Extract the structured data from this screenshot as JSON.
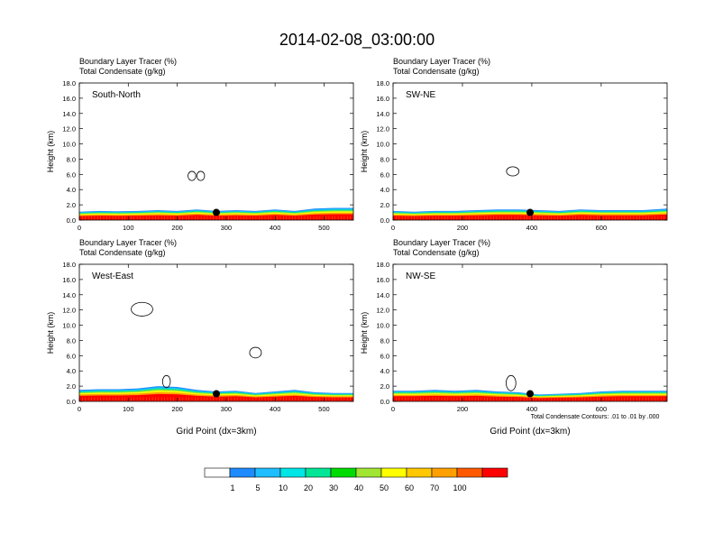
{
  "figure": {
    "title": "2014-02-08_03:00:00",
    "panel_label_line1": "Boundary Layer Tracer   (%)",
    "panel_label_line2": "Total Condensate   (g/kg)",
    "ylabel": "Height (km)",
    "xlabel": "Grid Point (dx=3km)",
    "contour_note": "Total Condensate Contours: .01 to .01 by .000"
  },
  "colorbar": {
    "labels": [
      "1",
      "5",
      "10",
      "20",
      "30",
      "40",
      "50",
      "60",
      "70",
      "100"
    ],
    "colors": [
      "#ffffff",
      "#1e8cff",
      "#1ebeff",
      "#00e6e6",
      "#00e696",
      "#00dc00",
      "#a0e632",
      "#ffff00",
      "#ffc800",
      "#ffa000",
      "#ff5a00",
      "#ff0000"
    ]
  },
  "chart_data": [
    {
      "type": "heatmap",
      "name": "South-North",
      "title": "South-North",
      "xlim": [
        0,
        560
      ],
      "ylim": [
        0,
        18
      ],
      "xticks": [
        0,
        100,
        200,
        300,
        400,
        500
      ],
      "yticks": [
        "0.0",
        "2.0",
        "4.0",
        "6.0",
        "8.0",
        "10.0",
        "12.0",
        "14.0",
        "16.0",
        "18.0"
      ],
      "pbl_top_x": [
        0,
        40,
        80,
        120,
        160,
        200,
        240,
        280,
        320,
        360,
        400,
        440,
        480,
        520,
        560
      ],
      "pbl_top_km": [
        1.1,
        1.2,
        1.15,
        1.2,
        1.3,
        1.2,
        1.4,
        1.2,
        1.3,
        1.2,
        1.4,
        1.2,
        1.5,
        1.6,
        1.6
      ],
      "marker": {
        "x": 280,
        "y": 1.0
      },
      "condensate_contours": [
        {
          "x": 230,
          "y": 5.8,
          "rx": 8,
          "ry": 0.6
        },
        {
          "x": 248,
          "y": 5.8,
          "rx": 8,
          "ry": 0.6
        }
      ]
    },
    {
      "type": "heatmap",
      "name": "SW-NE",
      "title": "SW-NE",
      "xlim": [
        0,
        790
      ],
      "ylim": [
        0,
        18
      ],
      "xticks": [
        0,
        200,
        400,
        600
      ],
      "yticks": [
        "0.0",
        "2.0",
        "4.0",
        "6.0",
        "8.0",
        "10.0",
        "12.0",
        "14.0",
        "16.0",
        "18.0"
      ],
      "pbl_top_x": [
        0,
        60,
        120,
        180,
        240,
        300,
        360,
        420,
        480,
        540,
        600,
        660,
        720,
        790
      ],
      "pbl_top_km": [
        1.2,
        1.1,
        1.2,
        1.2,
        1.3,
        1.4,
        1.4,
        1.3,
        1.2,
        1.4,
        1.3,
        1.3,
        1.3,
        1.5
      ],
      "marker": {
        "x": 395,
        "y": 1.0
      },
      "condensate_contours": [
        {
          "x": 345,
          "y": 6.4,
          "rx": 18,
          "ry": 0.6
        }
      ]
    },
    {
      "type": "heatmap",
      "name": "West-East",
      "title": "West-East",
      "xlim": [
        0,
        560
      ],
      "ylim": [
        0,
        18
      ],
      "xticks": [
        0,
        100,
        200,
        300,
        400,
        500
      ],
      "yticks": [
        "0.0",
        "2.0",
        "4.0",
        "6.0",
        "8.0",
        "10.0",
        "12.0",
        "14.0",
        "16.0",
        "18.0"
      ],
      "pbl_top_x": [
        0,
        40,
        80,
        120,
        160,
        200,
        240,
        280,
        320,
        360,
        400,
        440,
        480,
        520,
        560
      ],
      "pbl_top_km": [
        1.5,
        1.6,
        1.6,
        1.7,
        2.0,
        1.9,
        1.5,
        1.3,
        1.4,
        1.1,
        1.3,
        1.5,
        1.2,
        1.1,
        1.1
      ],
      "marker": {
        "x": 280,
        "y": 1.0
      },
      "condensate_contours": [
        {
          "x": 128,
          "y": 12.1,
          "rx": 22,
          "ry": 0.9
        },
        {
          "x": 360,
          "y": 6.4,
          "rx": 12,
          "ry": 0.7
        },
        {
          "x": 178,
          "y": 2.6,
          "rx": 8,
          "ry": 0.8
        }
      ]
    },
    {
      "type": "heatmap",
      "name": "NW-SE",
      "title": "NW-SE",
      "xlim": [
        0,
        790
      ],
      "ylim": [
        0,
        18
      ],
      "xticks": [
        0,
        200,
        400,
        600
      ],
      "yticks": [
        "0.0",
        "2.0",
        "4.0",
        "6.0",
        "8.0",
        "10.0",
        "12.0",
        "14.0",
        "16.0",
        "18.0"
      ],
      "pbl_top_x": [
        0,
        60,
        120,
        180,
        240,
        300,
        360,
        420,
        480,
        540,
        600,
        660,
        720,
        790
      ],
      "pbl_top_km": [
        1.4,
        1.4,
        1.5,
        1.4,
        1.5,
        1.3,
        1.2,
        0.9,
        1.0,
        1.1,
        1.3,
        1.4,
        1.4,
        1.4
      ],
      "marker": {
        "x": 395,
        "y": 1.0
      },
      "condensate_contours": [
        {
          "x": 340,
          "y": 2.4,
          "rx": 14,
          "ry": 1.0
        }
      ]
    }
  ]
}
